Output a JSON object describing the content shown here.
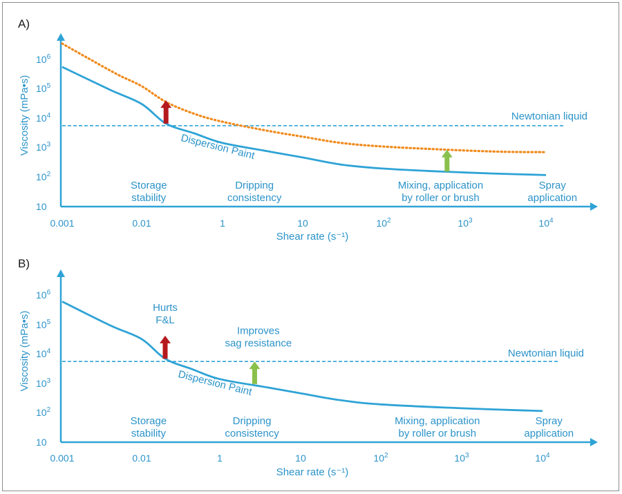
{
  "colors": {
    "axis": "#2ea3d6",
    "text": "#2b93c9",
    "dispersion": "#2ea3d6",
    "orange": "#f08a1c",
    "red_arrow": "#b5191d",
    "green_arrow": "#8ac04c",
    "frame": "#8d8d8d"
  },
  "chart_data": [
    {
      "panel": "A)",
      "type": "line",
      "xlabel": "Shear rate (s⁻¹)",
      "ylabel": "Viscosity (mPa•s)",
      "x_scale": "log",
      "y_scale": "log",
      "x_ticks": [
        {
          "value": 0.001,
          "label": "0.001"
        },
        {
          "value": 0.01,
          "label": "0.01"
        },
        {
          "value": 1,
          "label": "1"
        },
        {
          "value": 10,
          "label": "10"
        },
        {
          "value": 100,
          "label": "10",
          "sup": "2"
        },
        {
          "value": 1000,
          "label": "10",
          "sup": "3"
        },
        {
          "value": 10000,
          "label": "10",
          "sup": "4"
        }
      ],
      "y_ticks": [
        {
          "value": 10,
          "label": "10"
        },
        {
          "value": 100,
          "label": "10",
          "sup": "2"
        },
        {
          "value": 1000,
          "label": "10",
          "sup": "3"
        },
        {
          "value": 10000,
          "label": "10",
          "sup": "4"
        },
        {
          "value": 100000,
          "label": "10",
          "sup": "5"
        },
        {
          "value": 1000000,
          "label": "10",
          "sup": "6"
        }
      ],
      "series": [
        {
          "name": "Dispersion Paint",
          "style": "solid",
          "color": "dispersion",
          "points": [
            [
              0.001,
              550000
            ],
            [
              0.004,
              90000
            ],
            [
              0.01,
              30000
            ],
            [
              0.04,
              6500
            ],
            [
              0.2,
              3000
            ],
            [
              1,
              1400
            ],
            [
              4,
              700
            ],
            [
              10,
              450
            ],
            [
              30,
              260
            ],
            [
              100,
              190
            ],
            [
              1000,
              140
            ],
            [
              10000,
              115
            ]
          ]
        },
        {
          "name": "",
          "style": "dotted",
          "color": "orange",
          "points": [
            [
              0.001,
              3500000
            ],
            [
              0.002,
              1200000
            ],
            [
              0.005,
              300000
            ],
            [
              0.01,
              120000
            ],
            [
              0.04,
              35000
            ],
            [
              0.2,
              14000
            ],
            [
              1,
              7500
            ],
            [
              4,
              3500
            ],
            [
              10,
              2300
            ],
            [
              30,
              1400
            ],
            [
              100,
              1050
            ],
            [
              600,
              820
            ],
            [
              3000,
              700
            ],
            [
              10000,
              680
            ]
          ]
        }
      ],
      "reference_line": {
        "label": "Newtonian liquid",
        "y": 5500
      },
      "arrows": [
        {
          "color": "red_arrow",
          "x": 0.04,
          "y_from": 6500,
          "y_to": 40000
        },
        {
          "color": "green_arrow",
          "x": 600,
          "y_from": 150,
          "y_to": 820
        }
      ],
      "curve_label": {
        "text": "Dispersion Paint",
        "x": 0.25,
        "y": 900,
        "angle": 14
      },
      "regions": [
        {
          "lines": [
            "Storage",
            "stability"
          ],
          "x": 0.015
        },
        {
          "lines": [
            "Dripping",
            "consistency"
          ],
          "x": 2.5
        },
        {
          "lines": [
            "Mixing, application",
            "by roller or brush"
          ],
          "x": 500
        },
        {
          "lines": [
            "Spray",
            "application"
          ],
          "x": 12000
        }
      ],
      "annotations": []
    },
    {
      "panel": "B)",
      "type": "line",
      "xlabel": "Shear rate (s⁻¹)",
      "ylabel": "Viscosity (mPa•s)",
      "x_scale": "log",
      "y_scale": "log",
      "x_ticks": [
        {
          "value": 0.001,
          "label": "0.001"
        },
        {
          "value": 0.01,
          "label": "0.01"
        },
        {
          "value": 1,
          "label": "1"
        },
        {
          "value": 10,
          "label": "10"
        },
        {
          "value": 100,
          "label": "10",
          "sup": "2"
        },
        {
          "value": 1000,
          "label": "10",
          "sup": "3"
        },
        {
          "value": 10000,
          "label": "10",
          "sup": "4"
        }
      ],
      "y_ticks": [
        {
          "value": 10,
          "label": "10"
        },
        {
          "value": 100,
          "label": "10",
          "sup": "2"
        },
        {
          "value": 1000,
          "label": "10",
          "sup": "3"
        },
        {
          "value": 10000,
          "label": "10",
          "sup": "4"
        },
        {
          "value": 100000,
          "label": "10",
          "sup": "5"
        },
        {
          "value": 1000000,
          "label": "10",
          "sup": "6"
        }
      ],
      "series": [
        {
          "name": "Dispersion Paint",
          "style": "solid",
          "color": "dispersion",
          "points": [
            [
              0.001,
              600000
            ],
            [
              0.004,
              95000
            ],
            [
              0.01,
              32000
            ],
            [
              0.04,
              6800
            ],
            [
              0.2,
              3000
            ],
            [
              1,
              1400
            ],
            [
              4,
              720
            ],
            [
              10,
              460
            ],
            [
              30,
              270
            ],
            [
              100,
              190
            ],
            [
              1000,
              140
            ],
            [
              10000,
              112
            ]
          ]
        }
      ],
      "reference_line": {
        "label": "Newtonian liquid",
        "y": 5500
      },
      "arrows": [
        {
          "color": "red_arrow",
          "x": 0.04,
          "y_from": 6800,
          "y_to": 42000
        },
        {
          "color": "green_arrow",
          "x": 2.7,
          "y_from": 950,
          "y_to": 5500
        }
      ],
      "curve_label": {
        "text": "Dispersion Paint",
        "x": 0.25,
        "y": 900,
        "angle": 14
      },
      "regions": [
        {
          "lines": [
            "Storage",
            "stability"
          ],
          "x": 0.015
        },
        {
          "lines": [
            "Dripping",
            "consistency"
          ],
          "x": 2.5
        },
        {
          "lines": [
            "Mixing, application",
            "by roller or brush"
          ],
          "x": 500
        },
        {
          "lines": [
            "Spray",
            "application"
          ],
          "x": 12000
        }
      ],
      "annotations": [
        {
          "lines": [
            "Hurts",
            "F&L"
          ],
          "x": 0.04,
          "y": 100000
        },
        {
          "lines": [
            "Improves",
            "sag resistance"
          ],
          "x": 3.0,
          "y": 16000
        }
      ]
    }
  ]
}
